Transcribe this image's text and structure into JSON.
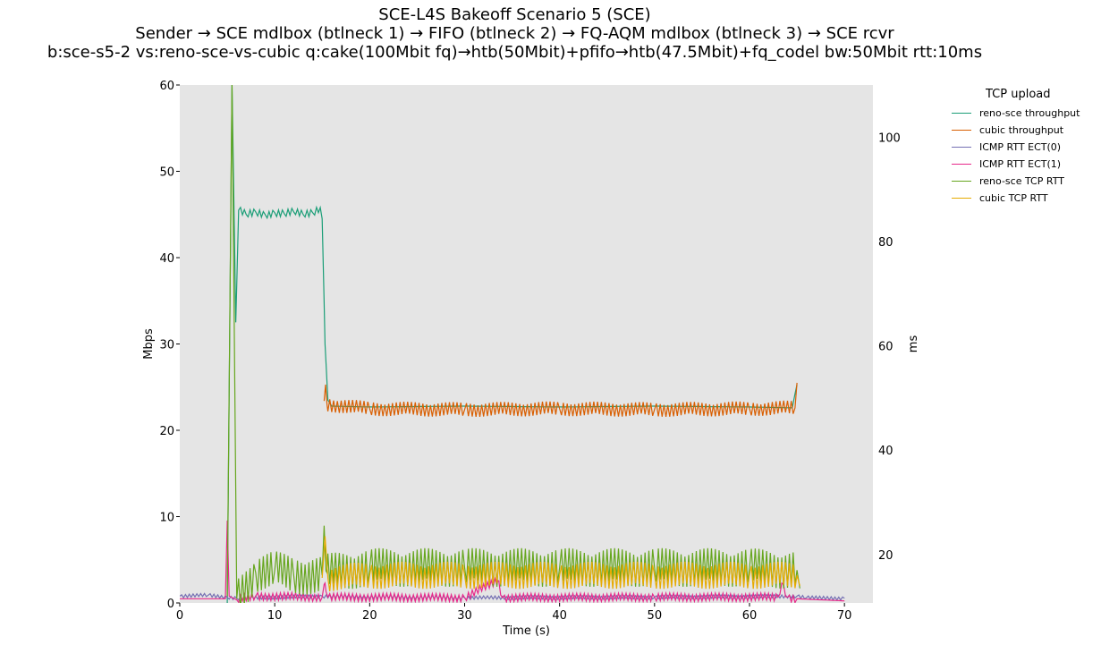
{
  "title": {
    "line1": "SCE-L4S Bakeoff Scenario 5 (SCE)",
    "line2": "Sender → SCE mdlbox (btlneck 1) → FIFO (btlneck 2) → FQ-AQM mdlbox (btlneck 3) → SCE rcvr",
    "line3": "b:sce-s5-2 vs:reno-sce-vs-cubic q:cake(100Mbit fq)→htb(50Mbit)+pfifo→htb(47.5Mbit)+fq_codel bw:50Mbit rtt:10ms"
  },
  "chart_data": {
    "type": "line",
    "xlabel": "Time (s)",
    "ylabel_left": "Mbps",
    "ylabel_right": "ms",
    "xlim": [
      0,
      73
    ],
    "ylim_left": [
      0,
      60
    ],
    "ylim_right": [
      10.7,
      110
    ],
    "xticks": [
      0,
      10,
      20,
      30,
      40,
      50,
      60,
      70
    ],
    "yticks_left": [
      0,
      10,
      20,
      30,
      40,
      50,
      60
    ],
    "yticks_right": [
      20,
      40,
      60,
      80,
      100
    ],
    "grid": false,
    "background": "#e5e5e5",
    "legend": {
      "title": "TCP upload",
      "placement": "outside-right"
    },
    "series": [
      {
        "name": "reno-sce throughput",
        "axis": "left",
        "color": "#1b9e77",
        "x": [
          5.0,
          5.5,
          5.9,
          6.2,
          7,
          8,
          9,
          10,
          11,
          12,
          13,
          14,
          14.8,
          15.0,
          15.3,
          15.6,
          16,
          20,
          30,
          40,
          50,
          60,
          64.5,
          65.0
        ],
        "y": [
          0,
          60,
          32.5,
          45.5,
          45,
          45.3,
          45,
          45.2,
          45.1,
          45.3,
          45,
          45.2,
          45.8,
          44.5,
          30,
          23.5,
          22.8,
          22.7,
          22.8,
          22.7,
          22.8,
          22.7,
          22.6,
          25.3
        ],
        "oscillation": {
          "from": 6.2,
          "to": 14.8,
          "amplitude": 0.45
        }
      },
      {
        "name": "cubic throughput",
        "axis": "left",
        "color": "#d95f02",
        "x": [
          15.2,
          15.35,
          15.5,
          20,
          30,
          40,
          50,
          60,
          64.8,
          65.0
        ],
        "y": [
          23.4,
          25.3,
          23.0,
          22.5,
          22.4,
          22.5,
          22.4,
          22.5,
          22.6,
          25.5
        ],
        "oscillation": {
          "from": 15.5,
          "to": 64.8,
          "amplitude": 0.85
        }
      },
      {
        "name": "ICMP RTT ECT(0)",
        "axis": "right",
        "color": "#7570b3",
        "x": [
          0,
          3,
          5,
          6,
          15,
          30,
          50,
          65,
          66,
          70
        ],
        "y": [
          12.0,
          12.2,
          11.8,
          11.6,
          12.0,
          11.7,
          11.8,
          12.0,
          11.7,
          11.6
        ],
        "oscillation": {
          "from": 0,
          "to": 70,
          "amplitude": 0.35
        }
      },
      {
        "name": "ICMP RTT ECT(1)",
        "axis": "right",
        "color": "#e7298a",
        "x": [
          0,
          4.8,
          5.0,
          5.2,
          6,
          8,
          15,
          15.3,
          15.6,
          30,
          33.5,
          34,
          50,
          63,
          63.4,
          64,
          65,
          70
        ],
        "y": [
          11.5,
          11.5,
          26.5,
          12.0,
          11.3,
          12.0,
          11.8,
          14.5,
          11.8,
          11.7,
          15.0,
          11.7,
          11.8,
          11.8,
          14.5,
          11.8,
          11.5,
          11.1
        ],
        "oscillation": {
          "from": 6,
          "to": 65,
          "amplitude": 0.8
        }
      },
      {
        "name": "reno-sce TCP RTT",
        "axis": "right",
        "color": "#66a61e",
        "x": [
          5.0,
          5.5,
          6.0,
          8,
          10,
          12,
          15.0,
          15.2,
          15.5,
          20,
          30,
          40,
          50,
          60,
          65.0,
          65.3
        ],
        "y": [
          12.0,
          110,
          11.5,
          16.5,
          17.0,
          16.0,
          16.0,
          25.5,
          16.5,
          17.5,
          17.5,
          17.5,
          17.5,
          17.5,
          17.0,
          13.5
        ],
        "oscillation": {
          "from": 6.0,
          "to": 65.0,
          "amplitude": 3.7
        }
      },
      {
        "name": "cubic TCP RTT",
        "axis": "right",
        "color": "#e6ab02",
        "x": [
          15.0,
          15.3,
          15.6,
          20,
          30,
          40,
          50,
          60,
          65.0,
          65.3
        ],
        "y": [
          15.5,
          23.5,
          15.5,
          16.0,
          16.0,
          16.0,
          16.0,
          16.0,
          16.0,
          14.0
        ],
        "oscillation": {
          "from": 15.6,
          "to": 65.0,
          "amplitude": 2.6
        }
      }
    ]
  }
}
